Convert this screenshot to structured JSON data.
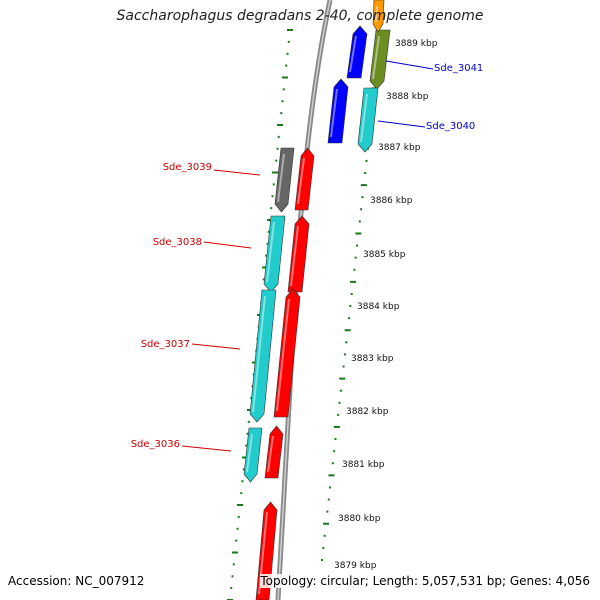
{
  "title": "Saccharophagus degradans 2-40, complete genome",
  "accession": "Accession: NC_007912",
  "summary": "Topology: circular; Length: 5,057,531 bp; Genes: 4,056",
  "colors": {
    "backbone": "#888888",
    "tick": "#1a7a1a",
    "label_red": "#cc0000",
    "label_blue": "#0000cc",
    "gene_red": "#ff0000",
    "gene_cyan": "#22cccc",
    "gene_blue": "#0000ff",
    "gene_olive": "#6b8e23",
    "gene_gray": "#666666",
    "gene_orange": "#ff9900"
  },
  "kbp_labels": [
    "3889 kbp",
    "3888 kbp",
    "3887 kbp",
    "3886 kbp",
    "3885 kbp",
    "3884 kbp",
    "3883 kbp",
    "3882 kbp",
    "3881 kbp",
    "3880 kbp",
    "3879 kbp"
  ],
  "gene_labels": [
    {
      "text": "Sde_3041",
      "color": "blue"
    },
    {
      "text": "Sde_3040",
      "color": "blue"
    },
    {
      "text": "Sde_3039",
      "color": "red"
    },
    {
      "text": "Sde_3038",
      "color": "red"
    },
    {
      "text": "Sde_3037",
      "color": "red"
    },
    {
      "text": "Sde_3036",
      "color": "red"
    }
  ]
}
